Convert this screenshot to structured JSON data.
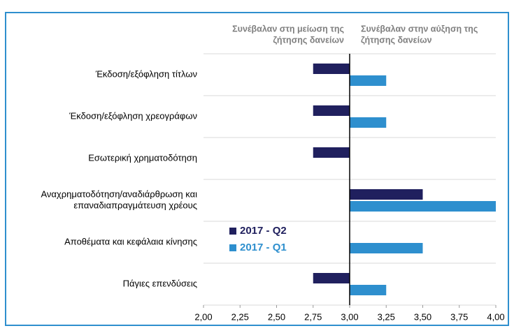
{
  "chart_data": {
    "type": "bar",
    "orientation": "horizontal",
    "categories": [
      [
        "Έκδοση/εξόφληση τίτλων"
      ],
      [
        "Έκδοση/εξόφληση χρεογράφων"
      ],
      [
        "Εσωτερική χρηματοδότηση"
      ],
      [
        "Αναχρηματοδότηση/αναδιάρθρωση και",
        "επαναδιαπραγμάτευση χρέους"
      ],
      [
        "Αποθέματα και κεφάλαια κίνησης"
      ],
      [
        "Πάγιες επενδύσεις"
      ]
    ],
    "series": [
      {
        "name": "2017 - Q2",
        "color": "#20205e",
        "values": [
          2.75,
          2.75,
          2.75,
          3.5,
          3.0,
          2.75
        ]
      },
      {
        "name": "2017 - Q1",
        "color": "#2e8fce",
        "values": [
          3.25,
          3.25,
          3.0,
          4.0,
          3.5,
          3.25
        ]
      }
    ],
    "base": 3,
    "xlim": [
      2,
      4
    ],
    "xticks": [
      {
        "value": 2,
        "label": "2,00"
      },
      {
        "value": 2.25,
        "label": "2,25"
      },
      {
        "value": 2.5,
        "label": "2,50"
      },
      {
        "value": 2.75,
        "label": "2,75"
      },
      {
        "value": 3,
        "label": "3,00"
      },
      {
        "value": 3.25,
        "label": "3,25"
      },
      {
        "value": 3.5,
        "label": "3,50"
      },
      {
        "value": 3.75,
        "label": "3,75"
      },
      {
        "value": 4,
        "label": "4,00"
      }
    ],
    "annotations": [
      {
        "side": "left",
        "lines": [
          "Συνέβαλαν στη μείωση της",
          "ζήτησης δανείων"
        ]
      },
      {
        "side": "right",
        "lines": [
          "Συνέβαλαν στην αύξηση της",
          "ζήτησης δανείων"
        ]
      }
    ],
    "grid": true
  }
}
